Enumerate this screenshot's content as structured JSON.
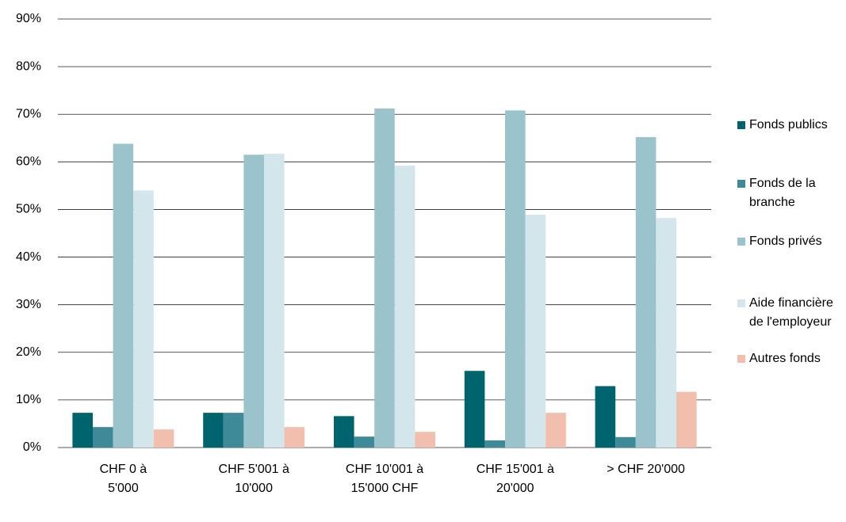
{
  "chart_data": {
    "type": "bar",
    "categories": [
      "CHF 0 à 5'000",
      "CHF 5'001 à 10'000",
      "CHF 10'001 à 15'000 CHF",
      "CHF 15'001 à 20'000",
      "> CHF 20'000"
    ],
    "series": [
      {
        "name": "Fonds publics",
        "color": "#00646e",
        "values": [
          7.3,
          7.3,
          6.6,
          16.1,
          12.9
        ]
      },
      {
        "name": "Fonds de la branche",
        "color": "#3f8a99",
        "values": [
          4.3,
          7.3,
          2.3,
          1.5,
          2.2
        ]
      },
      {
        "name": "Fonds privés",
        "color": "#9bc3cc",
        "values": [
          63.8,
          61.5,
          71.2,
          70.8,
          65.2
        ]
      },
      {
        "name": "Aide financière de l'employeur",
        "color": "#d3e6ec",
        "values": [
          54,
          61.7,
          59.2,
          48.9,
          48.2
        ]
      },
      {
        "name": "Autres fonds",
        "color": "#f2bfae",
        "values": [
          3.8,
          4.3,
          3.3,
          7.3,
          11.7
        ]
      }
    ],
    "ylim": [
      0,
      90
    ],
    "yticks": [
      {
        "value": 0,
        "label": "0%"
      },
      {
        "value": 10,
        "label": "10%"
      },
      {
        "value": 20,
        "label": "20%"
      },
      {
        "value": 30,
        "label": "30%"
      },
      {
        "value": 40,
        "label": "40%"
      },
      {
        "value": 50,
        "label": "50%"
      },
      {
        "value": 60,
        "label": "60%"
      },
      {
        "value": 70,
        "label": "70%"
      },
      {
        "value": 80,
        "label": "80%"
      },
      {
        "value": 90,
        "label": "90%"
      }
    ],
    "grid": true,
    "legend": "right"
  }
}
